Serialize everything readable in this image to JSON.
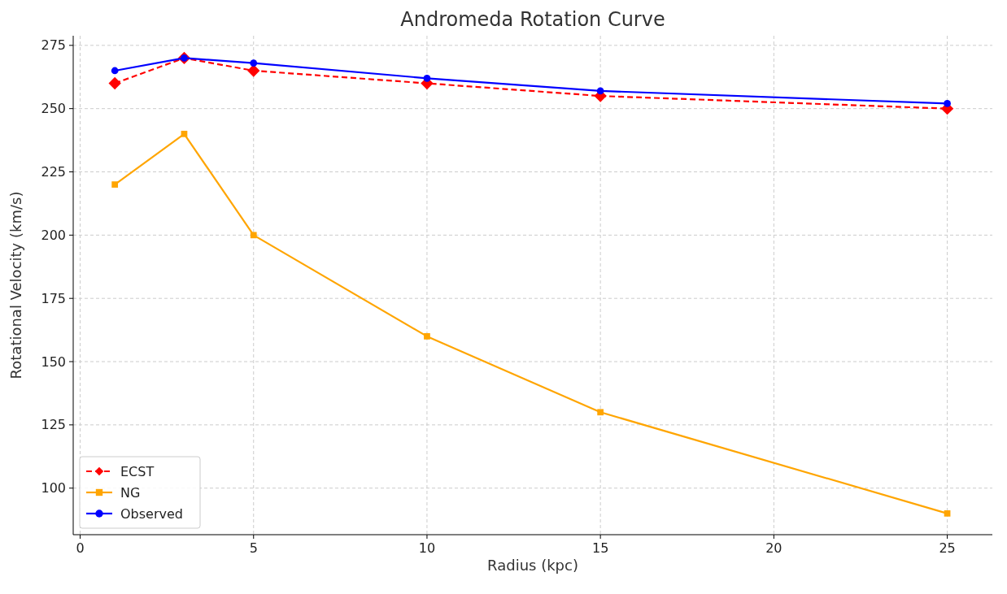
{
  "chart_data": {
    "type": "line",
    "title": "Andromeda Rotation Curve",
    "xlabel": "Radius (kpc)",
    "ylabel": "Rotational Velocity (km/s)",
    "x": [
      1,
      3,
      5,
      10,
      15,
      25
    ],
    "series": [
      {
        "name": "ECST",
        "color": "#ff0000",
        "values": [
          260,
          270,
          265,
          260,
          255,
          250
        ],
        "marker": "diamond",
        "line_style": "dashed"
      },
      {
        "name": "NG",
        "color": "#ffa500",
        "values": [
          220,
          240,
          200,
          160,
          130,
          90
        ],
        "marker": "square",
        "line_style": "solid"
      },
      {
        "name": "Observed",
        "color": "#0000ff",
        "values": [
          265,
          270,
          268,
          262,
          257,
          252
        ],
        "marker": "circle",
        "line_style": "solid"
      }
    ],
    "xlim": [
      -0.2,
      26.3
    ],
    "xticks": [
      0,
      5,
      10,
      15,
      20,
      25
    ],
    "ylim": [
      81.6,
      278.8
    ],
    "yticks": [
      100,
      125,
      150,
      175,
      200,
      225,
      250,
      275
    ],
    "grid": true,
    "legend": "bottom left"
  }
}
